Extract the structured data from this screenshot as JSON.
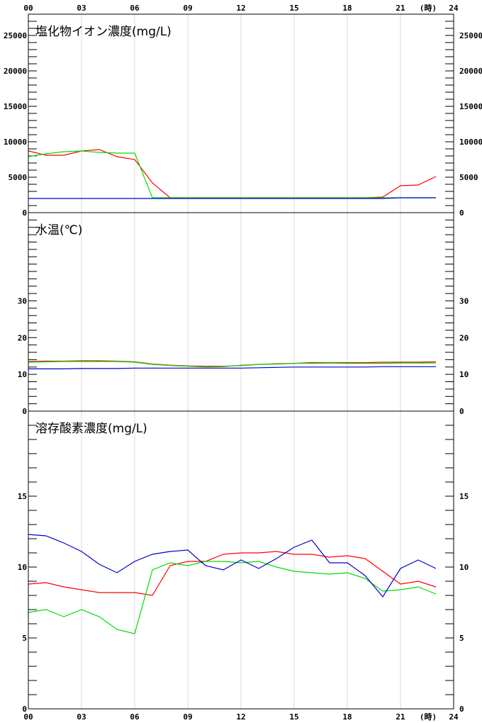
{
  "x_axis": {
    "ticks": [
      "00",
      "03",
      "06",
      "09",
      "12",
      "15",
      "18",
      "21",
      "24"
    ],
    "unit": "(時)"
  },
  "colors": {
    "red": "#ff0000",
    "green": "#00dd00",
    "blue": "#0000cc",
    "grid": "#d8d8d8"
  },
  "chart_data": [
    {
      "type": "line",
      "title": "塩化物イオン濃度(mg/L)",
      "ylim": [
        0,
        28000
      ],
      "yticks": [
        "0",
        "5000",
        "10000",
        "15000",
        "20000",
        "25000"
      ],
      "ytick_values": [
        0,
        5000,
        10000,
        15000,
        20000,
        25000
      ],
      "xlim": [
        0,
        24
      ],
      "series": [
        {
          "color": "red",
          "x": [
            0,
            1,
            2,
            3,
            4,
            5,
            6,
            7,
            8,
            9,
            10,
            11,
            12,
            13,
            14,
            15,
            16,
            17,
            18,
            19,
            20,
            21,
            22,
            23
          ],
          "y": [
            8700,
            8100,
            8100,
            8700,
            8900,
            7900,
            7500,
            4200,
            2100,
            2100,
            2100,
            2100,
            2100,
            2100,
            2100,
            2100,
            2100,
            2100,
            2100,
            2100,
            2200,
            3800,
            3900,
            5100
          ]
        },
        {
          "color": "green",
          "x": [
            0,
            1,
            2,
            3,
            4,
            5,
            6,
            7,
            8,
            9,
            10,
            11,
            12,
            13,
            14,
            15,
            16,
            17,
            18,
            19,
            20,
            21,
            22,
            23
          ],
          "y": [
            7900,
            8300,
            8600,
            8700,
            8500,
            8400,
            8400,
            2100,
            2100,
            2100,
            2100,
            2100,
            2100,
            2100,
            2100,
            2100,
            2100,
            2100,
            2100,
            2100,
            2100,
            2100,
            2100,
            2100
          ]
        },
        {
          "color": "blue",
          "x": [
            0,
            1,
            2,
            3,
            4,
            5,
            6,
            7,
            8,
            9,
            10,
            11,
            12,
            13,
            14,
            15,
            16,
            17,
            18,
            19,
            20,
            21,
            22,
            23
          ],
          "y": [
            2000,
            2000,
            2000,
            2000,
            2000,
            2000,
            2000,
            2000,
            2000,
            2000,
            2000,
            2000,
            2000,
            2000,
            2000,
            2000,
            2000,
            2000,
            2000,
            2000,
            2000,
            2100,
            2100,
            2100
          ]
        }
      ]
    },
    {
      "type": "line",
      "title": "水温(℃)",
      "ylim": [
        0,
        54
      ],
      "yticks": [
        "0",
        "10",
        "20",
        "30"
      ],
      "ytick_values": [
        0,
        10,
        20,
        30
      ],
      "xlim": [
        0,
        24
      ],
      "series": [
        {
          "color": "red",
          "x": [
            0,
            1,
            2,
            3,
            4,
            5,
            6,
            7,
            8,
            9,
            10,
            11,
            12,
            13,
            14,
            15,
            16,
            17,
            18,
            19,
            20,
            21,
            22,
            23
          ],
          "y": [
            13.5,
            13.6,
            13.6,
            13.7,
            13.7,
            13.6,
            13.4,
            12.8,
            12.5,
            12.3,
            12.2,
            12.2,
            12.4,
            12.7,
            12.9,
            13.0,
            13.2,
            13.2,
            13.2,
            13.2,
            13.3,
            13.3,
            13.3,
            13.4
          ]
        },
        {
          "color": "green",
          "x": [
            0,
            1,
            2,
            3,
            4,
            5,
            6,
            7,
            8,
            9,
            10,
            11,
            12,
            13,
            14,
            15,
            16,
            17,
            18,
            19,
            20,
            21,
            22,
            23
          ],
          "y": [
            13.3,
            13.4,
            13.5,
            13.5,
            13.5,
            13.5,
            13.3,
            12.7,
            12.4,
            12.2,
            12.0,
            12.1,
            12.5,
            12.7,
            12.8,
            13.0,
            13.0,
            13.1,
            13.0,
            13.0,
            13.0,
            13.1,
            13.1,
            13.1
          ]
        },
        {
          "color": "blue",
          "x": [
            0,
            1,
            2,
            3,
            4,
            5,
            6,
            7,
            8,
            9,
            10,
            11,
            12,
            13,
            14,
            15,
            16,
            17,
            18,
            19,
            20,
            21,
            22,
            23
          ],
          "y": [
            11.5,
            11.5,
            11.5,
            11.6,
            11.6,
            11.6,
            11.7,
            11.7,
            11.7,
            11.7,
            11.7,
            11.7,
            11.7,
            11.8,
            11.9,
            12.0,
            12.0,
            12.0,
            12.0,
            12.0,
            12.1,
            12.1,
            12.1,
            12.1
          ]
        }
      ]
    },
    {
      "type": "line",
      "title": "溶存酸素濃度(mg/L)",
      "ylim": [
        0,
        21
      ],
      "yticks": [
        "0",
        "5",
        "10",
        "15"
      ],
      "ytick_values": [
        0,
        5,
        10,
        15
      ],
      "xlim": [
        0,
        24
      ],
      "series": [
        {
          "color": "red",
          "x": [
            0,
            1,
            2,
            3,
            4,
            5,
            6,
            7,
            8,
            9,
            10,
            11,
            12,
            13,
            14,
            15,
            16,
            17,
            18,
            19,
            20,
            21,
            22,
            23
          ],
          "y": [
            8.8,
            8.9,
            8.6,
            8.4,
            8.2,
            8.2,
            8.2,
            8.0,
            10.1,
            10.4,
            10.4,
            10.9,
            11.0,
            11.0,
            11.1,
            10.9,
            10.9,
            10.7,
            10.8,
            10.6,
            9.7,
            8.8,
            9.0,
            8.6
          ]
        },
        {
          "color": "green",
          "x": [
            0,
            1,
            2,
            3,
            4,
            5,
            6,
            7,
            8,
            9,
            10,
            11,
            12,
            13,
            14,
            15,
            16,
            17,
            18,
            19,
            20,
            21,
            22,
            23
          ],
          "y": [
            6.8,
            7.0,
            6.5,
            7.0,
            6.5,
            5.6,
            5.3,
            9.8,
            10.3,
            10.1,
            10.4,
            10.4,
            10.3,
            10.4,
            10.0,
            9.7,
            9.6,
            9.5,
            9.6,
            9.2,
            8.3,
            8.4,
            8.6,
            8.1
          ]
        },
        {
          "color": "blue",
          "x": [
            0,
            1,
            2,
            3,
            4,
            5,
            6,
            7,
            8,
            9,
            10,
            11,
            12,
            13,
            14,
            15,
            16,
            17,
            18,
            19,
            20,
            21,
            22,
            23
          ],
          "y": [
            12.3,
            12.2,
            11.7,
            11.1,
            10.2,
            9.6,
            10.4,
            10.9,
            11.1,
            11.2,
            10.1,
            9.8,
            10.5,
            9.9,
            10.6,
            11.4,
            11.9,
            10.3,
            10.3,
            9.4,
            7.9,
            9.9,
            10.5,
            9.9
          ]
        }
      ]
    }
  ]
}
